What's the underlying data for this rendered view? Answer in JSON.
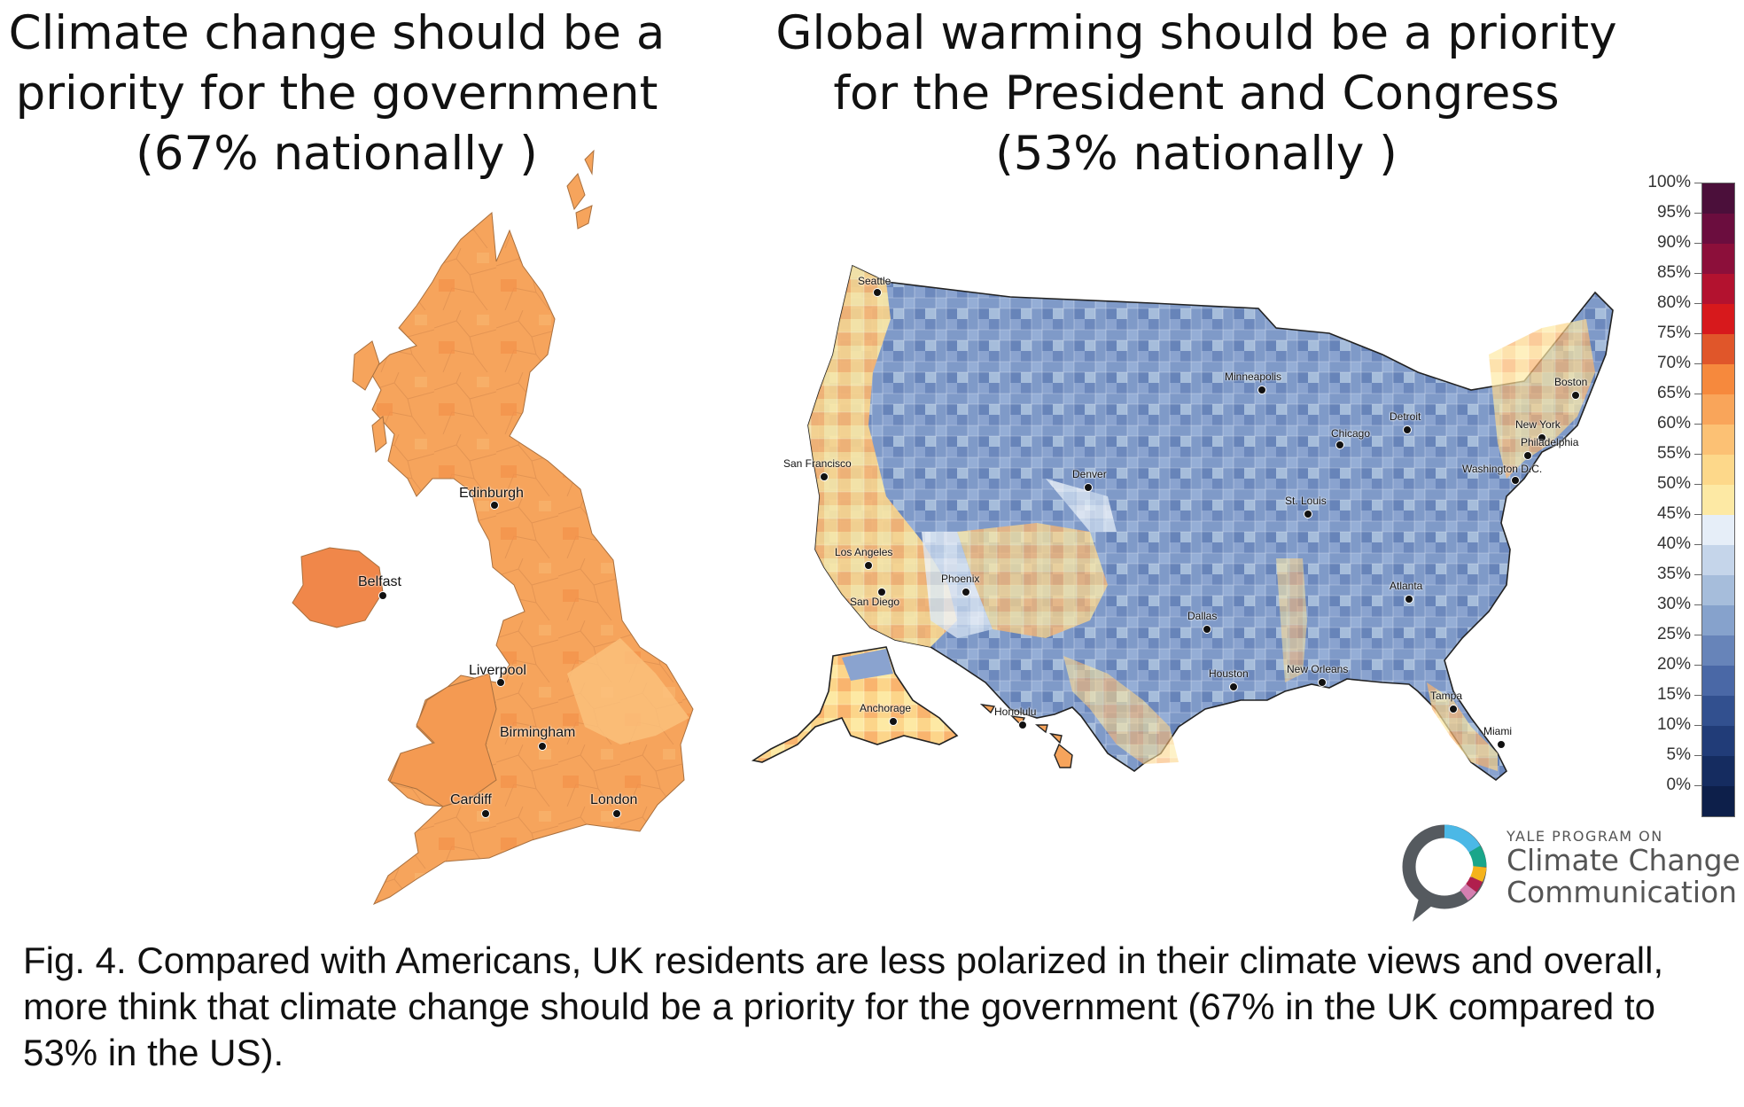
{
  "uk_map": {
    "title_lines": [
      "Climate change should be a",
      "priority for the government",
      "(67% nationally )"
    ],
    "cities": [
      {
        "name": "Edinburgh"
      },
      {
        "name": "Belfast"
      },
      {
        "name": "Liverpool"
      },
      {
        "name": "Birmingham"
      },
      {
        "name": "Cardiff"
      },
      {
        "name": "London"
      }
    ]
  },
  "us_map": {
    "title_lines": [
      "Global warming should be a priority",
      "for the President and Congress",
      "(53% nationally )"
    ],
    "cities": [
      {
        "name": "Seattle"
      },
      {
        "name": "San Francisco"
      },
      {
        "name": "Los Angeles"
      },
      {
        "name": "San Diego"
      },
      {
        "name": "Phoenix"
      },
      {
        "name": "Denver"
      },
      {
        "name": "Dallas"
      },
      {
        "name": "Houston"
      },
      {
        "name": "Minneapolis"
      },
      {
        "name": "Chicago"
      },
      {
        "name": "St. Louis"
      },
      {
        "name": "Detroit"
      },
      {
        "name": "New Orleans"
      },
      {
        "name": "Atlanta"
      },
      {
        "name": "Tampa"
      },
      {
        "name": "Miami"
      },
      {
        "name": "Boston"
      },
      {
        "name": "New York"
      },
      {
        "name": "Philadelphia"
      },
      {
        "name": "Washington D.C."
      },
      {
        "name": "Anchorage"
      },
      {
        "name": "Honolulu"
      }
    ]
  },
  "legend": {
    "ticks": [
      "100%",
      "95%",
      "90%",
      "85%",
      "80%",
      "75%",
      "70%",
      "65%",
      "60%",
      "55%",
      "50%",
      "45%",
      "40%",
      "35%",
      "30%",
      "25%",
      "20%",
      "15%",
      "10%",
      "5%",
      "0%"
    ],
    "colors_top_to_bottom": [
      "#4b0f3a",
      "#6b0d3e",
      "#8c0f3a",
      "#b3122f",
      "#d7191c",
      "#e0562a",
      "#f6893d",
      "#f9a55a",
      "#fcc174",
      "#fdd88a",
      "#fde9a4",
      "#e6eef8",
      "#c5d5ea",
      "#a6bddb",
      "#86a2cc",
      "#6784b9",
      "#4a68a6",
      "#32508f",
      "#213c78",
      "#152c60",
      "#0d1f4a"
    ]
  },
  "logo": {
    "line1": "YALE PROGRAM ON",
    "line2": "Climate Change",
    "line3": "Communication",
    "ring_colors": [
      "#4bb8e6",
      "#1aa68a",
      "#f5b31b",
      "#b01f4d",
      "#d57fb0",
      "#555a5f"
    ]
  },
  "caption": {
    "label": "Fig. 4",
    "text": ". Compared with Americans, UK residents are less polarized in their climate views and overall, more think that climate change should be a priority for the government (67% in the UK compared to 53% in the US)."
  }
}
